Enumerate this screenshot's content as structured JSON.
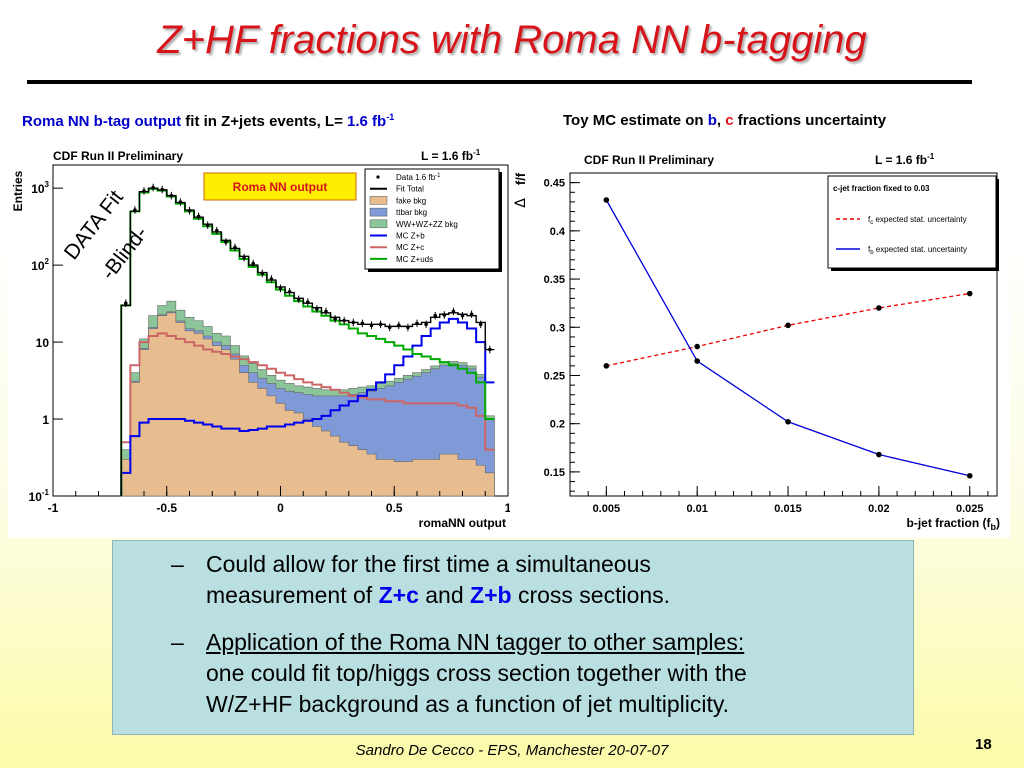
{
  "slide": {
    "title": "Z+HF fractions with Roma NN b-tagging",
    "page_number": "18",
    "footer": "Sandro De Cecco  -  EPS, Manchester 20-07-07"
  },
  "left_caption": {
    "part1": "Roma NN b-tag output",
    "part2": " fit in Z+jets events, L= ",
    "lumi": "1.6 fb",
    "sup": "-1"
  },
  "right_caption": {
    "part1": "Toy MC estimate on ",
    "b": "b",
    "comma": ", ",
    "c": "c",
    "part2": " fractions uncertainty"
  },
  "bullets": {
    "b1_line1": "Could allow for the first time a simultaneous",
    "b1_pre": "measurement of ",
    "b1_zc": "Z+c",
    "b1_and": " and ",
    "b1_zb": "Z+b",
    "b1_post": " cross sections.",
    "b2_underlined": "Application of the Roma NN tagger to other samples:",
    "b2_line2": "one could fit top/higgs cross section together with the",
    "b2_line3": "W/Z+HF background as a function of jet multiplicity.",
    "dash": "–"
  },
  "chart_data": [
    {
      "type": "histogram",
      "title": "CDF Run II Preliminary",
      "lumi_label": "L = 1.6 fb",
      "lumi_sup": "-1",
      "xlabel": "romaNN output",
      "ylabel": "Entries",
      "label_box": "Roma NN output",
      "overlay_text_1": "DATA Fit",
      "overlay_text_2": "-Blind-",
      "xlim": [
        -1,
        1
      ],
      "ylog": true,
      "ylim": [
        0.1,
        2000
      ],
      "x_ticks": [
        "-1",
        "-0.5",
        "0",
        "0.5",
        "1"
      ],
      "x_tick_values": [
        -1,
        -0.5,
        0,
        0.5,
        1
      ],
      "y_ticks": [
        {
          "base": "10",
          "exp": "-1",
          "value": 0.1
        },
        {
          "base": "1",
          "exp": "",
          "value": 1
        },
        {
          "base": "10",
          "exp": "",
          "value": 10
        },
        {
          "base": "10",
          "exp": "2",
          "value": 100
        },
        {
          "base": "10",
          "exp": "3",
          "value": 1000
        }
      ],
      "legend_placement": "top-right",
      "legend": [
        {
          "name": "Data 1.6 fb",
          "sup": "-1",
          "style": "marker"
        },
        {
          "name": "Fit Total",
          "style": "line",
          "color": "#000000"
        },
        {
          "name": "fake bkg",
          "style": "fill",
          "color": "#e7bd8f"
        },
        {
          "name": "ttbar bkg",
          "style": "fill",
          "color": "#7f9ad6"
        },
        {
          "name": "WW+WZ+ZZ bkg",
          "style": "fill",
          "color": "#8cc59a"
        },
        {
          "name": "MC Z+b",
          "style": "line",
          "color": "#0000ee"
        },
        {
          "name": "MC Z+c",
          "style": "line",
          "color": "#cc6666"
        },
        {
          "name": "MC Z+uds",
          "style": "line",
          "color": "#00aa00"
        }
      ],
      "x": [
        -0.68,
        -0.64,
        -0.6,
        -0.56,
        -0.52,
        -0.48,
        -0.44,
        -0.4,
        -0.36,
        -0.32,
        -0.28,
        -0.24,
        -0.2,
        -0.16,
        -0.12,
        -0.08,
        -0.04,
        0,
        0.04,
        0.08,
        0.12,
        0.16,
        0.2,
        0.24,
        0.28,
        0.32,
        0.36,
        0.4,
        0.44,
        0.48,
        0.52,
        0.56,
        0.6,
        0.64,
        0.68,
        0.72,
        0.76,
        0.8,
        0.84,
        0.88,
        0.92
      ],
      "series": [
        {
          "name": "Fit Total",
          "values": [
            30,
            500,
            900,
            1000,
            950,
            800,
            650,
            520,
            420,
            340,
            270,
            210,
            165,
            130,
            100,
            80,
            64,
            52,
            44,
            37,
            32,
            28,
            24,
            21,
            19,
            18,
            17,
            17,
            17,
            16,
            16,
            16,
            17,
            18,
            21,
            23,
            24,
            23,
            22,
            18,
            8
          ]
        },
        {
          "name": "fake bkg",
          "values": [
            0.3,
            3,
            8,
            15,
            22,
            24,
            18,
            14,
            13,
            11,
            9,
            8,
            6,
            4,
            3,
            2.5,
            2,
            1.6,
            1.3,
            1.2,
            1,
            0.8,
            0.7,
            0.6,
            0.5,
            0.45,
            0.4,
            0.35,
            0.3,
            0.3,
            0.28,
            0.28,
            0.3,
            0.3,
            0.3,
            0.35,
            0.35,
            0.3,
            0.3,
            0.25,
            0.2
          ]
        },
        {
          "name": "ttbar bkg",
          "values": [
            0.3,
            3.1,
            8.3,
            15.5,
            22.6,
            24.7,
            18.8,
            14.9,
            14,
            12,
            10,
            9,
            7,
            5,
            4,
            3.4,
            2.9,
            2.5,
            2.3,
            2.2,
            2.1,
            2,
            2,
            2,
            2,
            2.1,
            2.2,
            2.3,
            2.5,
            2.7,
            3,
            3.3,
            3.6,
            4,
            4.5,
            5,
            5.2,
            5,
            4.5,
            3.5,
            1
          ]
        },
        {
          "name": "WW+WZ+ZZ bkg",
          "values": [
            0.4,
            4,
            11,
            22,
            30,
            34,
            26,
            21,
            19,
            16,
            13,
            12,
            9,
            6.6,
            5.3,
            4.4,
            3.7,
            3.2,
            2.9,
            2.7,
            2.6,
            2.5,
            2.4,
            2.4,
            2.4,
            2.5,
            2.6,
            2.7,
            2.9,
            3.1,
            3.4,
            3.7,
            4,
            4.4,
            4.9,
            5.4,
            5.6,
            5.4,
            4.9,
            3.8,
            1.1
          ]
        },
        {
          "name": "MC Z+b",
          "values": [
            0.2,
            0.6,
            0.9,
            1,
            1,
            1,
            1,
            0.95,
            0.9,
            0.85,
            0.8,
            0.75,
            0.75,
            0.7,
            0.72,
            0.75,
            0.8,
            0.8,
            0.85,
            0.9,
            0.95,
            1,
            1.1,
            1.3,
            1.5,
            1.7,
            2,
            2.4,
            3,
            3.8,
            5,
            6.5,
            9,
            12,
            15,
            18,
            20,
            18,
            15,
            10,
            3
          ]
        },
        {
          "name": "MC Z+c",
          "values": [
            0.5,
            5,
            10,
            12,
            13,
            12,
            11,
            10,
            9,
            8,
            7.5,
            7,
            6.5,
            6,
            5.5,
            5,
            4.5,
            4,
            3.7,
            3.3,
            3,
            2.8,
            2.6,
            2.4,
            2.2,
            2,
            1.9,
            1.8,
            1.8,
            1.7,
            1.7,
            1.6,
            1.6,
            1.6,
            1.6,
            1.6,
            1.6,
            1.5,
            1.4,
            1.1,
            0.4
          ]
        },
        {
          "name": "MC Z+uds",
          "values": [
            30,
            500,
            880,
            980,
            930,
            780,
            630,
            500,
            400,
            320,
            255,
            200,
            155,
            120,
            95,
            75,
            60,
            48,
            40,
            34,
            29,
            25,
            22,
            19,
            17,
            15,
            13,
            12,
            11,
            10,
            9,
            8,
            7,
            6.5,
            6,
            5.5,
            5,
            4.5,
            4,
            3,
            1
          ]
        },
        {
          "name": "Data",
          "values": [
            32,
            520,
            920,
            1020,
            960,
            800,
            660,
            510,
            430,
            330,
            280,
            200,
            170,
            125,
            105,
            78,
            66,
            50,
            45,
            36,
            33,
            27,
            25,
            20,
            19,
            18,
            17.5,
            16.5,
            17,
            15.5,
            16.5,
            15.5,
            17.5,
            17,
            22,
            22.5,
            25,
            22,
            23,
            17,
            8
          ]
        }
      ]
    },
    {
      "type": "line",
      "title": "CDF Run II Preliminary",
      "lumi_label": "L = 1.6 fb",
      "lumi_sup": "-1",
      "xlabel": "b-jet fraction (f",
      "xlabel_sub": "b",
      "xlabel_end": ")",
      "ylabel_delta": "Δ",
      "ylabel": "f/f",
      "xlim": [
        0.003,
        0.0265
      ],
      "ylim": [
        0.125,
        0.46
      ],
      "x_ticks": [
        "0.005",
        "0.01",
        "0.015",
        "0.02",
        "0.025"
      ],
      "x_tick_values": [
        0.005,
        0.01,
        0.015,
        0.02,
        0.025
      ],
      "y_ticks": [
        "0.15",
        "0.2",
        "0.25",
        "0.3",
        "0.35",
        "0.4",
        "0.45"
      ],
      "y_tick_values": [
        0.15,
        0.2,
        0.25,
        0.3,
        0.35,
        0.4,
        0.45
      ],
      "legend_placement": "top-right",
      "legend_header": "c-jet fraction fixed to 0.03",
      "x": [
        0.005,
        0.01,
        0.015,
        0.02,
        0.025
      ],
      "series": [
        {
          "name": "f",
          "sub": "c",
          "suffix": " expected stat. uncertainty",
          "style": "dashed",
          "color": "#ee0000",
          "values": [
            0.26,
            0.28,
            0.302,
            0.32,
            0.335
          ]
        },
        {
          "name": "f",
          "sub": "b",
          "suffix": " expected stat. uncertainty",
          "style": "solid",
          "color": "#0000dd",
          "values": [
            0.432,
            0.265,
            0.202,
            0.168,
            0.146
          ]
        }
      ]
    }
  ]
}
